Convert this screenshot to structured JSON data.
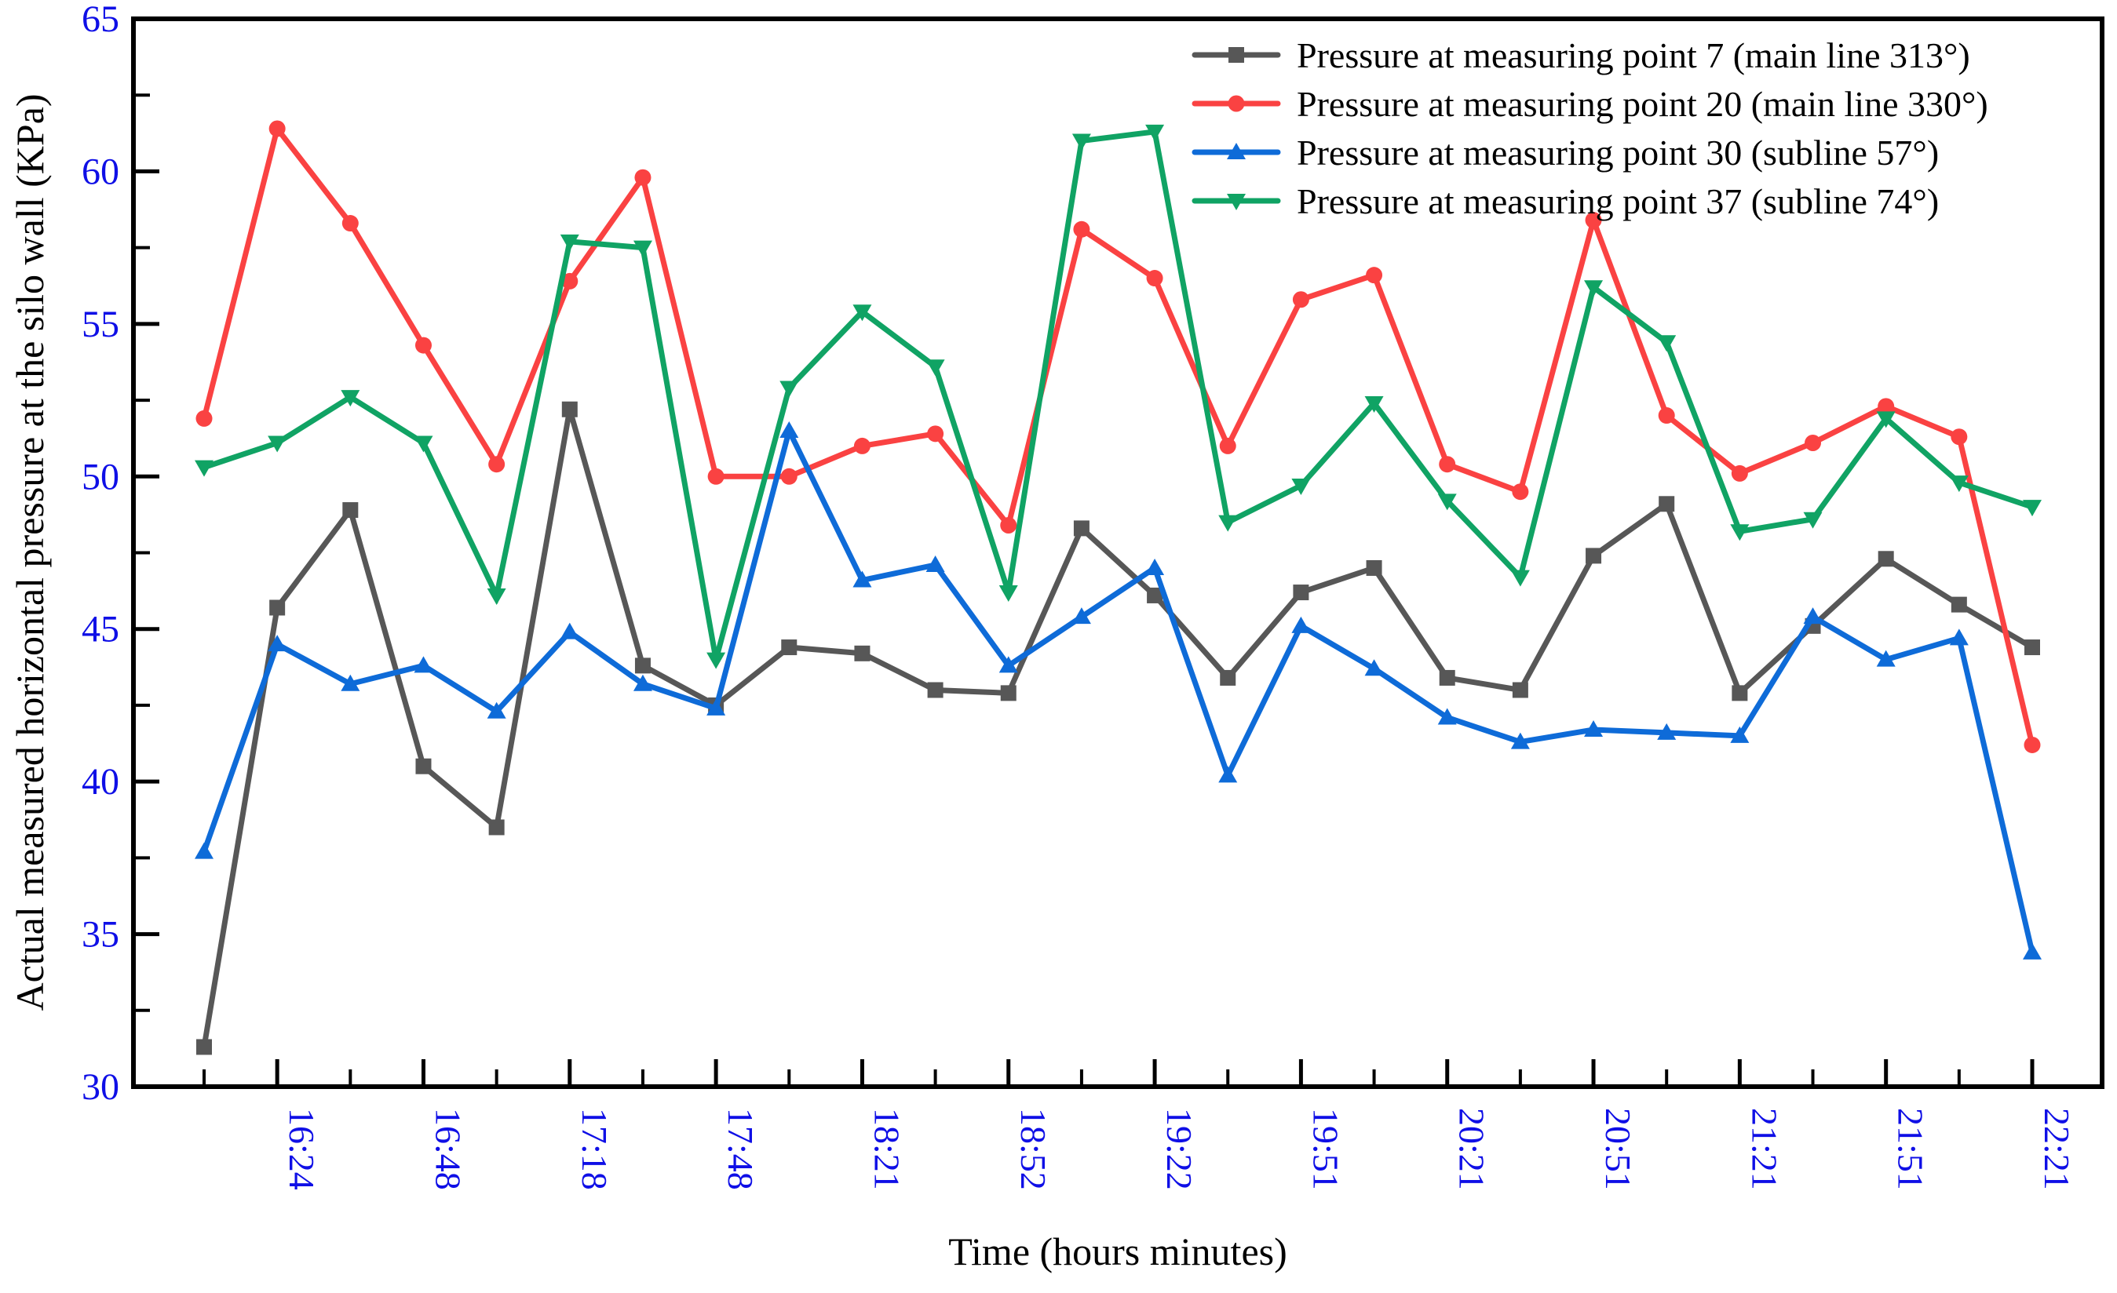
{
  "figure": {
    "background": "#ffffff",
    "axes": {
      "x_title": "Time (hours minutes)",
      "y_title": "Actual measured horizontal pressure at the silo wall (KPa)",
      "y_min": 30,
      "y_max": 65,
      "y_major_step": 5,
      "y_minor_step": 2.5,
      "tick_label_color": "#0F0FE6",
      "spine_color": "#000000"
    }
  },
  "chart_data": {
    "type": "line",
    "title": "",
    "xlabel": "Time (hours minutes)",
    "ylabel": "Actual measured horizontal pressure at the silo wall (KPa)",
    "ylim": [
      30,
      65
    ],
    "grid": false,
    "legend_position": "top-right-inside",
    "n_slots": 26,
    "x_tick_labels": [
      "16:24",
      "16:48",
      "17:18",
      "17:48",
      "18:21",
      "18:52",
      "19:22",
      "19:51",
      "20:21",
      "20:51",
      "21:21",
      "21:51",
      "22:21"
    ],
    "x_label_slots": [
      1,
      3,
      5,
      7,
      9,
      11,
      13,
      15,
      17,
      19,
      21,
      23,
      25
    ],
    "series": [
      {
        "name": "Pressure at measuring point 7 (main line 313°)",
        "color": "#575757",
        "marker": "square",
        "values": [
          31.3,
          45.7,
          48.9,
          40.5,
          38.5,
          52.2,
          43.8,
          42.5,
          44.4,
          44.2,
          43.0,
          42.9,
          48.3,
          46.1,
          43.4,
          46.2,
          47.0,
          43.4,
          43.0,
          47.4,
          49.1,
          42.9,
          45.1,
          47.3,
          45.8,
          44.4
        ]
      },
      {
        "name": "Pressure at measuring point 20 (main line 330°)",
        "color": "#FA4242",
        "marker": "circle",
        "values": [
          51.9,
          61.4,
          58.3,
          54.3,
          50.4,
          56.4,
          59.8,
          50.0,
          50.0,
          51.0,
          51.4,
          48.4,
          58.1,
          56.5,
          51.0,
          55.8,
          56.6,
          50.4,
          49.5,
          58.4,
          52.0,
          50.1,
          51.1,
          52.3,
          51.3,
          41.2
        ]
      },
      {
        "name": "Pressure at measuring point 30 (subline 57°)",
        "color": "#0E6BD8",
        "marker": "triangle-up",
        "values": [
          37.7,
          44.5,
          43.2,
          43.8,
          42.3,
          44.9,
          43.2,
          42.4,
          51.5,
          46.6,
          47.1,
          43.8,
          45.4,
          47.0,
          40.2,
          45.1,
          43.7,
          42.1,
          41.3,
          41.7,
          41.6,
          41.5,
          45.4,
          44.0,
          44.7,
          34.4
        ]
      },
      {
        "name": "Pressure at measuring point 37 (subline 74°)",
        "color": "#10A364",
        "marker": "triangle-down",
        "values": [
          50.3,
          51.1,
          52.6,
          51.1,
          46.1,
          57.7,
          57.5,
          44.0,
          52.9,
          55.4,
          53.6,
          46.2,
          61.0,
          61.3,
          48.5,
          49.7,
          52.4,
          49.2,
          46.7,
          56.2,
          54.4,
          48.2,
          48.6,
          51.9,
          49.8,
          49.0
        ]
      }
    ]
  }
}
